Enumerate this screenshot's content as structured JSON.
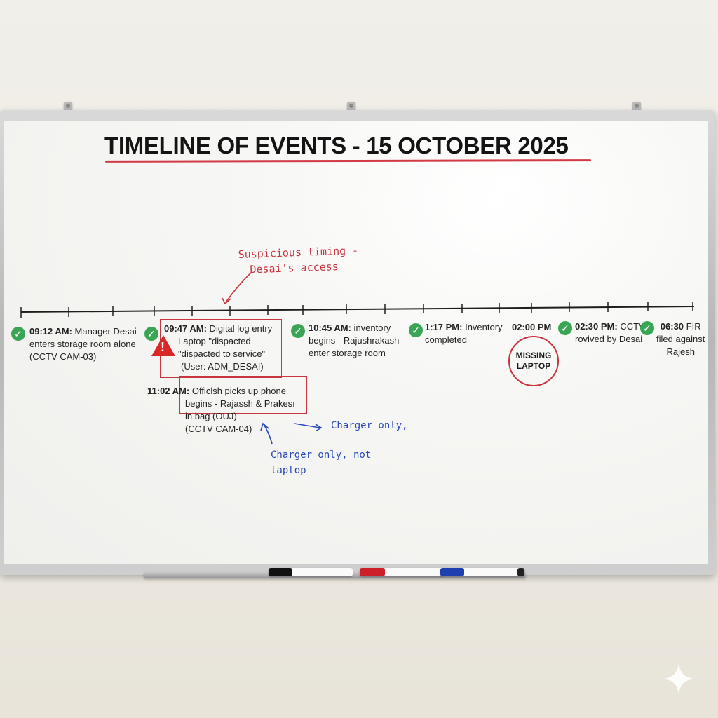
{
  "title": "TIMELINE OF EVENTS - 15 OCTOBER 2025",
  "events": [
    {
      "time": "09:12 AM:",
      "line1": " Manager Desai",
      "line2": "enters storage room alone",
      "line3": "(CCTV CAM-03)"
    },
    {
      "time": "09:47 AM:",
      "line1": " Digital log entry",
      "line2": "Laptop \"dispacted",
      "line3": "\"dispacted to service\"",
      "line4": "(User: ADM_DESAI)"
    },
    {
      "time": "10:45 AM:",
      "line1": " inventory",
      "line2": "begins - Rajushrakash",
      "line3": "enter storage room"
    },
    {
      "time": "1:17 PM:",
      "line1": " Inventory",
      "line2": "completed"
    },
    {
      "time": "02:00 PM",
      "circle_line1": "MISSING",
      "circle_line2": "LAPTOP"
    },
    {
      "time": "02:30 PM:",
      "line1": " CCTV",
      "line2": "rovived by Desai"
    },
    {
      "time": "06:30",
      "line1": " FIR",
      "line2": "filed against",
      "line3": "Rajesh"
    },
    {
      "time": "11:02 AM:",
      "line1": " Officlsh picks up phone",
      "line2": "begins - Rajassh & Prakesı",
      "line3": "in bag (OUJ)",
      "line4": "(CCTV CAM-04)"
    }
  ],
  "annotations": {
    "suspicious_line1": "Suspicious timing -",
    "suspicious_line2": "Desai's access",
    "charger_right": "Charger only,",
    "charger_line1": "Charger only, not",
    "charger_line2": "laptop"
  },
  "colors": {
    "red_marker": "#c9343e",
    "blue_marker": "#2a49b8",
    "check_green": "#3aa655",
    "warning_red": "#d82828"
  },
  "icons": [
    "check-circle-icon",
    "warning-triangle-icon",
    "sparkle-icon"
  ]
}
